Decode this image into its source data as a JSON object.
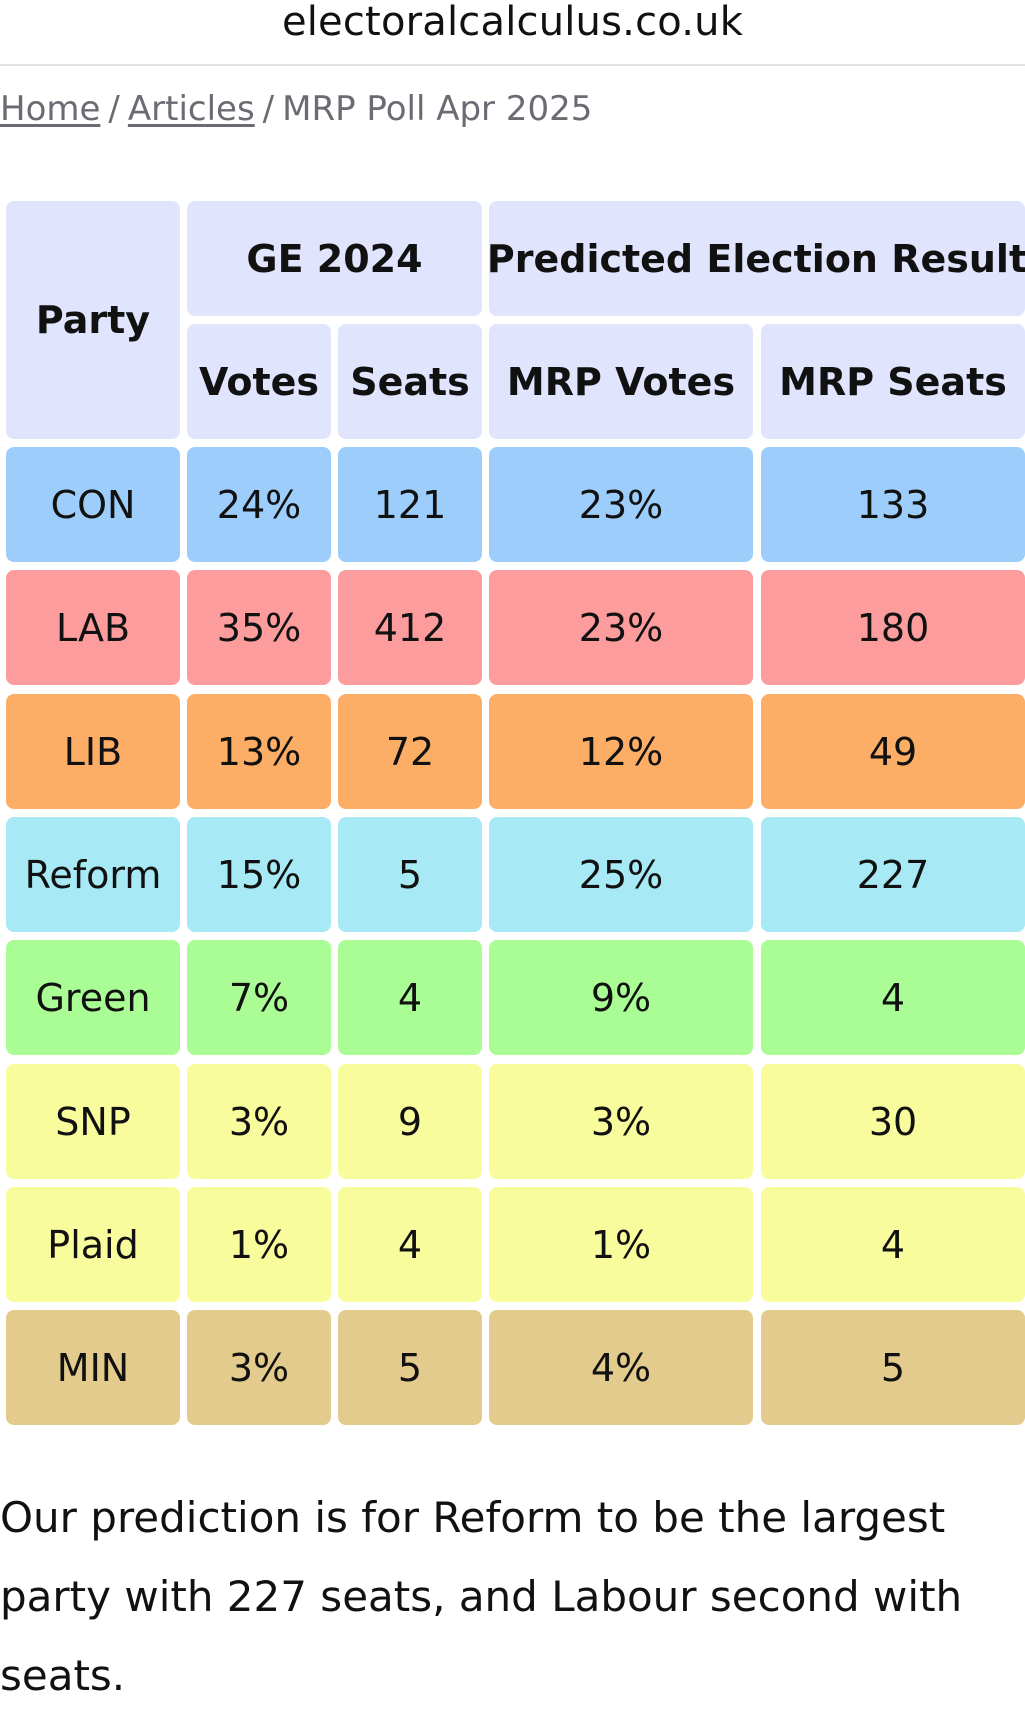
{
  "browser": {
    "url": "electoralcalculus.co.uk"
  },
  "breadcrumb": {
    "home": "Home",
    "articles": "Articles",
    "current": "MRP Poll Apr 2025",
    "separator": "/"
  },
  "table": {
    "headers": {
      "party": "Party",
      "ge_group": "GE 2024",
      "predicted_group": "Predicted Election Result",
      "votes": "Votes",
      "seats": "Seats",
      "mrp_votes": "MRP Votes",
      "mrp_seats": "MRP Seats"
    },
    "header_color": "#e0e4fc",
    "rows": [
      {
        "party": "CON",
        "votes": "24%",
        "seats": "121",
        "mrp_votes": "23%",
        "mrp_seats": "133",
        "color": "#9ccdfb"
      },
      {
        "party": "LAB",
        "votes": "35%",
        "seats": "412",
        "mrp_votes": "23%",
        "mrp_seats": "180",
        "color": "#fd9c9c"
      },
      {
        "party": "LIB",
        "votes": "13%",
        "seats": "72",
        "mrp_votes": "12%",
        "mrp_seats": "49",
        "color": "#fcae66"
      },
      {
        "party": "Reform",
        "votes": "15%",
        "seats": "5",
        "mrp_votes": "25%",
        "mrp_seats": "227",
        "color": "#a7e9f4"
      },
      {
        "party": "Green",
        "votes": "7%",
        "seats": "4",
        "mrp_votes": "9%",
        "mrp_seats": "4",
        "color": "#aafc95"
      },
      {
        "party": "SNP",
        "votes": "3%",
        "seats": "9",
        "mrp_votes": "3%",
        "mrp_seats": "30",
        "color": "#f9fc9c"
      },
      {
        "party": "Plaid",
        "votes": "1%",
        "seats": "4",
        "mrp_votes": "1%",
        "mrp_seats": "4",
        "color": "#f9fc9c"
      },
      {
        "party": "MIN",
        "votes": "3%",
        "seats": "5",
        "mrp_votes": "4%",
        "mrp_seats": "5",
        "color": "#e2cb8c"
      }
    ]
  },
  "description": "Our prediction is for Reform to be the largest party with 227 seats, and Labour second with seats."
}
